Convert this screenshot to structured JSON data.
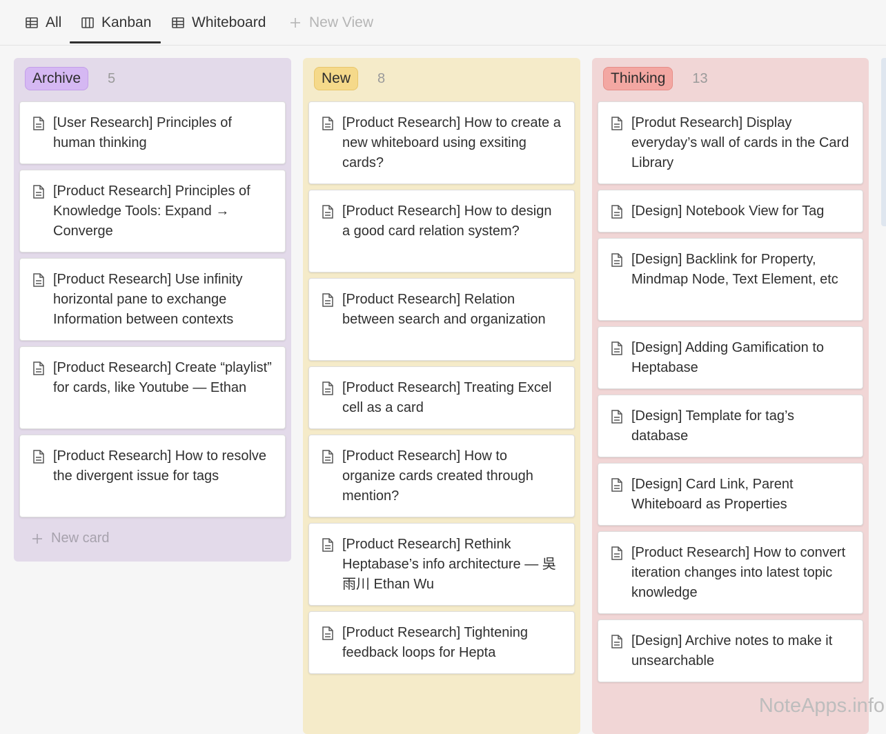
{
  "tabs": [
    {
      "label": "All",
      "icon": "table-icon"
    },
    {
      "label": "Kanban",
      "icon": "kanban-icon"
    },
    {
      "label": "Whiteboard",
      "icon": "table-icon"
    },
    {
      "label": "New View",
      "icon": "plus-icon"
    }
  ],
  "active_tab": "Kanban",
  "columns": {
    "archive": {
      "name": "Archive",
      "count": "5",
      "color": "#d5b8f3",
      "cards": [
        "[User Research] Principles of human thinking",
        "[Product Research] Principles of Knowledge Tools: Expand → Converge",
        "[Product Research] Use infinity horizontal pane to exchange Information between contexts",
        "[Product Research] Create “playlist” for cards, like Youtube — Ethan",
        "[Product Research] How to resolve the divergent issue for tags"
      ],
      "new_card_label": "New card"
    },
    "new": {
      "name": "New",
      "count": "8",
      "color": "#f5d98a",
      "cards": [
        "[Product Research] How to create a new whiteboard using exsiting cards?",
        "[Product Research] How to design a good card relation system?",
        "[Product Research] Relation between search and organization",
        "[Product Research] Treating Excel cell as a card",
        "[Product Research] How to organize cards created through mention?",
        "[Product Research] Rethink Heptabase’s info architecture — 吳雨川 Ethan Wu",
        "[Product Research] Tightening feedback loops for Hepta"
      ]
    },
    "thinking": {
      "name": "Thinking",
      "count": "13",
      "color": "#f3a7a2",
      "cards": [
        "[Produt Research] Display everyday’s wall of cards in the Card Library",
        "[Design] Notebook View for Tag",
        "[Design] Backlink for Property, Mindmap Node, Text Element, etc",
        "[Design] Adding Gamification to Heptabase",
        "[Design] Template for tag’s database",
        "[Design] Card Link, Parent Whiteboard as Properties",
        "[Product Research] How to convert iteration changes into latest topic knowledge",
        "[Design] Archive notes to make it unsearchable"
      ]
    }
  },
  "watermark": "NoteApps.info"
}
